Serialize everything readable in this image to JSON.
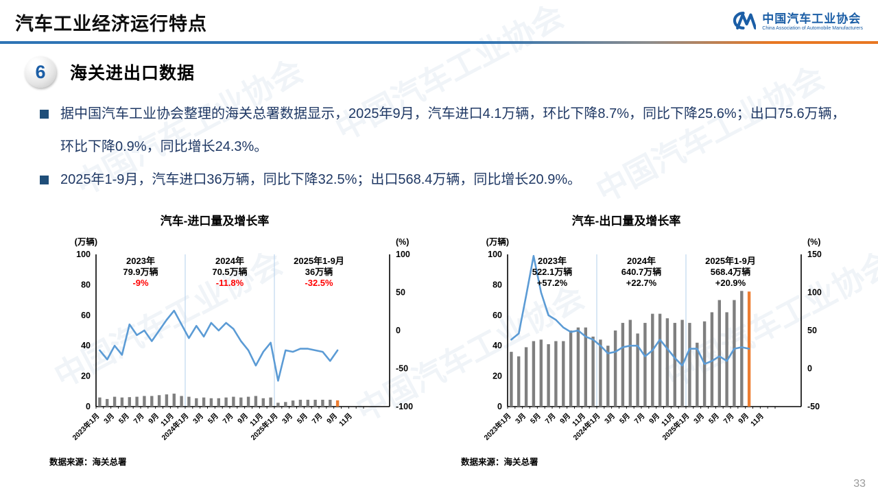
{
  "header": {
    "title": "汽车工业经济运行特点",
    "logo": {
      "mark": "CM",
      "org_cn": "中国汽车工业协会",
      "org_en": "China Association of Automobile Manufacturers"
    }
  },
  "section": {
    "number": "6",
    "title": "海关进出口数据"
  },
  "bullets": [
    "据中国汽车工业协会整理的海关总署数据显示，2025年9月，汽车进口4.1万辆，环比下降8.7%，同比下降25.6%；出口75.6万辆，环比下降0.9%，同比增长24.3%。",
    "2025年1-9月，汽车进口36万辆，同比下降32.5%；出口568.4万辆，同比增长20.9%。"
  ],
  "watermark": {
    "text_cn": "中国汽车工业协会"
  },
  "page_number": "33",
  "colors": {
    "accent_blue": "#2E74B5",
    "line_blue": "#5B9BD5",
    "bar_gray": "#7F7F7F",
    "bar_highlight_orange": "#ED7D31",
    "bullet_text_navy": "#1F3864",
    "negative_red": "#FF0000",
    "logo_blue": "#1B5EA6",
    "year_divider_blue": "#BDD7EE",
    "header_gradient_orange": "#E87722"
  },
  "chart_data": [
    {
      "type": "bar+line",
      "title": "汽车-进口量及增长率",
      "source": "数据来源：海关总署",
      "left_axis": {
        "label": "(万辆)",
        "ticks": [
          0,
          20,
          40,
          60,
          80,
          100
        ],
        "range": [
          0,
          100
        ]
      },
      "right_axis": {
        "label": "(%)",
        "ticks": [
          -100,
          -50,
          0,
          50,
          100
        ],
        "range": [
          -100,
          100
        ]
      },
      "x_slots": 36,
      "x_tick_labels": [
        "2023年1月",
        "3月",
        "5月",
        "7月",
        "9月",
        "11月",
        "2024年1月",
        "3月",
        "5月",
        "7月",
        "9月",
        "11月",
        "2025年1月",
        "3月",
        "5月",
        "7月",
        "9月",
        "11月"
      ],
      "year_dividers": [
        12,
        24
      ],
      "categories": [
        "2023年1月",
        "2023年2月",
        "2023年3月",
        "2023年4月",
        "2023年5月",
        "2023年6月",
        "2023年7月",
        "2023年8月",
        "2023年9月",
        "2023年10月",
        "2023年11月",
        "2023年12月",
        "2024年1月",
        "2024年2月",
        "2024年3月",
        "2024年4月",
        "2024年5月",
        "2024年6月",
        "2024年7月",
        "2024年8月",
        "2024年9月",
        "2024年10月",
        "2024年11月",
        "2024年12月",
        "2025年1月",
        "2025年2月",
        "2025年3月",
        "2025年4月",
        "2025年5月",
        "2025年6月",
        "2025年7月",
        "2025年8月",
        "2025年9月"
      ],
      "series": [
        {
          "name": "进口量(万辆)",
          "type": "bar",
          "axis": "left",
          "color": "#7F7F7F",
          "last_color": "#ED7D31",
          "values": [
            6.0,
            5.0,
            6.5,
            6.0,
            6.2,
            6.5,
            7.0,
            7.0,
            7.5,
            8.0,
            8.5,
            7.0,
            6.5,
            5.5,
            6.0,
            5.5,
            5.5,
            6.0,
            6.5,
            6.0,
            6.5,
            7.0,
            5.5,
            6.0,
            2.5,
            3.0,
            4.0,
            4.5,
            4.5,
            4.5,
            4.5,
            4.5,
            4.1
          ]
        },
        {
          "name": "增长率(%)",
          "type": "line",
          "axis": "right",
          "color": "#5B9BD5",
          "values": [
            -26,
            -38,
            -20,
            -32,
            8,
            -6,
            0,
            -14,
            0,
            14,
            26,
            8,
            -10,
            6,
            -8,
            10,
            0,
            10,
            2,
            -14,
            -26,
            -46,
            -28,
            -16,
            -66,
            -26,
            -28,
            -24,
            -24,
            -26,
            -28,
            -40,
            -26
          ]
        }
      ],
      "annotations": [
        {
          "year": "2023年",
          "volume": "79.9万辆",
          "pct": "-9%"
        },
        {
          "year": "2024年",
          "volume": "70.5万辆",
          "pct": "-11.8%"
        },
        {
          "year": "2025年1-9月",
          "volume": "36万辆",
          "pct": "-32.5%"
        }
      ],
      "pct_color": "#FF0000"
    },
    {
      "type": "bar+line",
      "title": "汽车-出口量及增长率",
      "source": "数据来源：海关总署",
      "left_axis": {
        "label": "(万辆)",
        "ticks": [
          0,
          20,
          40,
          60,
          80,
          100
        ],
        "range": [
          0,
          100
        ]
      },
      "right_axis": {
        "label": "(%)",
        "ticks": [
          -50,
          0,
          50,
          100,
          150
        ],
        "range": [
          -50,
          150
        ]
      },
      "x_slots": 36,
      "x_tick_labels": [
        "2023年1月",
        "3月",
        "5月",
        "7月",
        "9月",
        "11月",
        "2024年1月",
        "3月",
        "5月",
        "7月",
        "9月",
        "11月",
        "2025年1月",
        "3月",
        "5月",
        "7月",
        "9月",
        "11月"
      ],
      "year_dividers": [
        12,
        24
      ],
      "categories": [
        "2023年1月",
        "2023年2月",
        "2023年3月",
        "2023年4月",
        "2023年5月",
        "2023年6月",
        "2023年7月",
        "2023年8月",
        "2023年9月",
        "2023年10月",
        "2023年11月",
        "2023年12月",
        "2024年1月",
        "2024年2月",
        "2024年3月",
        "2024年4月",
        "2024年5月",
        "2024年6月",
        "2024年7月",
        "2024年8月",
        "2024年9月",
        "2024年10月",
        "2024年11月",
        "2024年12月",
        "2025年1月",
        "2025年2月",
        "2025年3月",
        "2025年4月",
        "2025年5月",
        "2025年6月",
        "2025年7月",
        "2025年8月",
        "2025年9月"
      ],
      "series": [
        {
          "name": "出口量(万辆)",
          "type": "bar",
          "axis": "left",
          "color": "#7F7F7F",
          "last_color": "#ED7D31",
          "values": [
            36,
            33,
            39,
            43,
            44,
            41,
            43,
            43,
            50,
            52,
            52,
            46,
            44,
            40,
            50,
            55,
            57,
            48,
            55,
            61,
            61,
            58,
            55,
            57,
            55,
            42,
            56,
            62,
            70,
            62,
            70,
            76,
            75.6
          ]
        },
        {
          "name": "增长率(%)",
          "type": "line",
          "axis": "right",
          "color": "#5B9BD5",
          "values": [
            38,
            46,
            96,
            148,
            100,
            70,
            64,
            54,
            48,
            50,
            42,
            38,
            30,
            20,
            22,
            28,
            30,
            30,
            16,
            24,
            38,
            26,
            14,
            4,
            26,
            26,
            6,
            10,
            16,
            10,
            26,
            28,
            26
          ]
        }
      ],
      "annotations": [
        {
          "year": "2023年",
          "volume": "522.1万辆",
          "pct": "+57.2%"
        },
        {
          "year": "2024年",
          "volume": "640.7万辆",
          "pct": "+22.7%"
        },
        {
          "year": "2025年1-9月",
          "volume": "568.4万辆",
          "pct": "+20.9%"
        }
      ],
      "pct_color": "#000000"
    }
  ]
}
